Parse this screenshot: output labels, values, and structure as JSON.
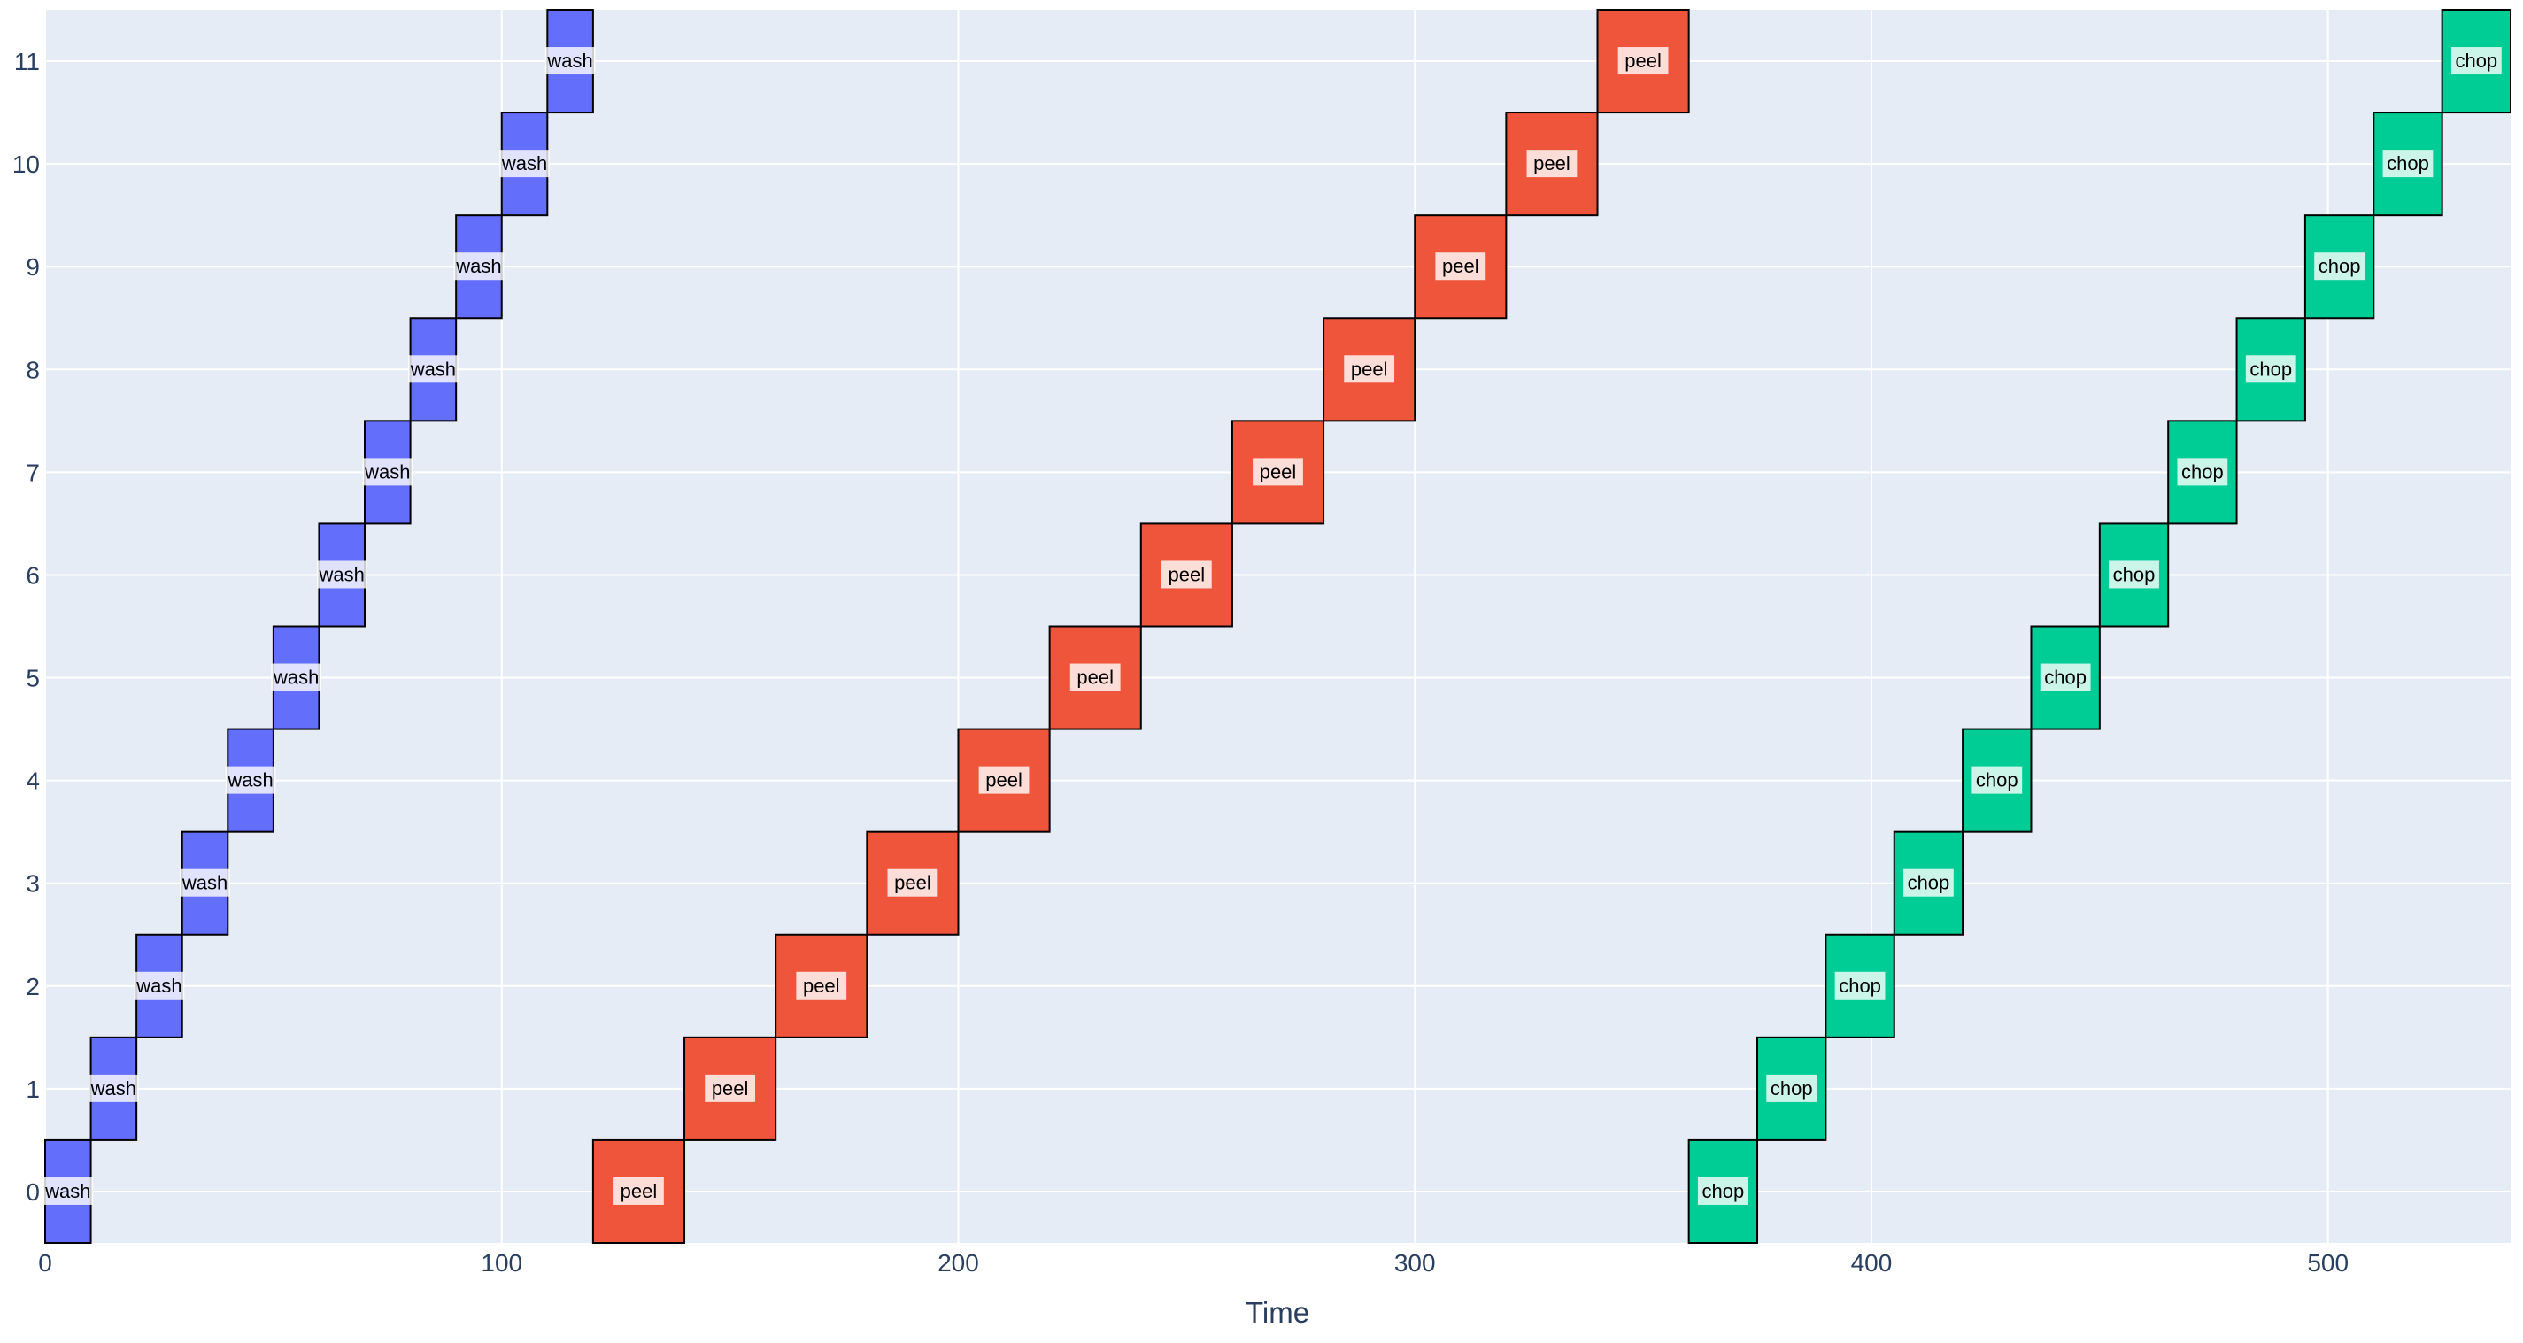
{
  "chart_data": {
    "type": "bar",
    "orientation": "horizontal",
    "xlabel": "Time",
    "ylabel": "",
    "xlim": [
      0,
      540
    ],
    "ylim": [
      -0.5,
      11.5
    ],
    "x_ticks": [
      0,
      100,
      200,
      300,
      400,
      500
    ],
    "y_ticks": [
      0,
      1,
      2,
      3,
      4,
      5,
      6,
      7,
      8,
      9,
      10,
      11
    ],
    "grid": true,
    "colors": {
      "wash": "#636efa",
      "peel": "#ef553b",
      "chop": "#00cc96",
      "plot_bg": "#e5ecf6",
      "grid": "#ffffff",
      "outline": "#000000"
    },
    "series": [
      {
        "label": "wash",
        "bars": [
          {
            "y": 0,
            "start": 0,
            "end": 10
          },
          {
            "y": 1,
            "start": 10,
            "end": 20
          },
          {
            "y": 2,
            "start": 20,
            "end": 30
          },
          {
            "y": 3,
            "start": 30,
            "end": 40
          },
          {
            "y": 4,
            "start": 40,
            "end": 50
          },
          {
            "y": 5,
            "start": 50,
            "end": 60
          },
          {
            "y": 6,
            "start": 60,
            "end": 70
          },
          {
            "y": 7,
            "start": 70,
            "end": 80
          },
          {
            "y": 8,
            "start": 80,
            "end": 90
          },
          {
            "y": 9,
            "start": 90,
            "end": 100
          },
          {
            "y": 10,
            "start": 100,
            "end": 110
          },
          {
            "y": 11,
            "start": 110,
            "end": 120
          }
        ]
      },
      {
        "label": "peel",
        "bars": [
          {
            "y": 0,
            "start": 120,
            "end": 140
          },
          {
            "y": 1,
            "start": 140,
            "end": 160
          },
          {
            "y": 2,
            "start": 160,
            "end": 180
          },
          {
            "y": 3,
            "start": 180,
            "end": 200
          },
          {
            "y": 4,
            "start": 200,
            "end": 220
          },
          {
            "y": 5,
            "start": 220,
            "end": 240
          },
          {
            "y": 6,
            "start": 240,
            "end": 260
          },
          {
            "y": 7,
            "start": 260,
            "end": 280
          },
          {
            "y": 8,
            "start": 280,
            "end": 300
          },
          {
            "y": 9,
            "start": 300,
            "end": 320
          },
          {
            "y": 10,
            "start": 320,
            "end": 340
          },
          {
            "y": 11,
            "start": 340,
            "end": 360
          }
        ]
      },
      {
        "label": "chop",
        "bars": [
          {
            "y": 0,
            "start": 360,
            "end": 375
          },
          {
            "y": 1,
            "start": 375,
            "end": 390
          },
          {
            "y": 2,
            "start": 390,
            "end": 405
          },
          {
            "y": 3,
            "start": 405,
            "end": 420
          },
          {
            "y": 4,
            "start": 420,
            "end": 435
          },
          {
            "y": 5,
            "start": 435,
            "end": 450
          },
          {
            "y": 6,
            "start": 450,
            "end": 465
          },
          {
            "y": 7,
            "start": 465,
            "end": 480
          },
          {
            "y": 8,
            "start": 480,
            "end": 495
          },
          {
            "y": 9,
            "start": 495,
            "end": 510
          },
          {
            "y": 10,
            "start": 510,
            "end": 525
          },
          {
            "y": 11,
            "start": 525,
            "end": 540
          }
        ]
      }
    ]
  }
}
